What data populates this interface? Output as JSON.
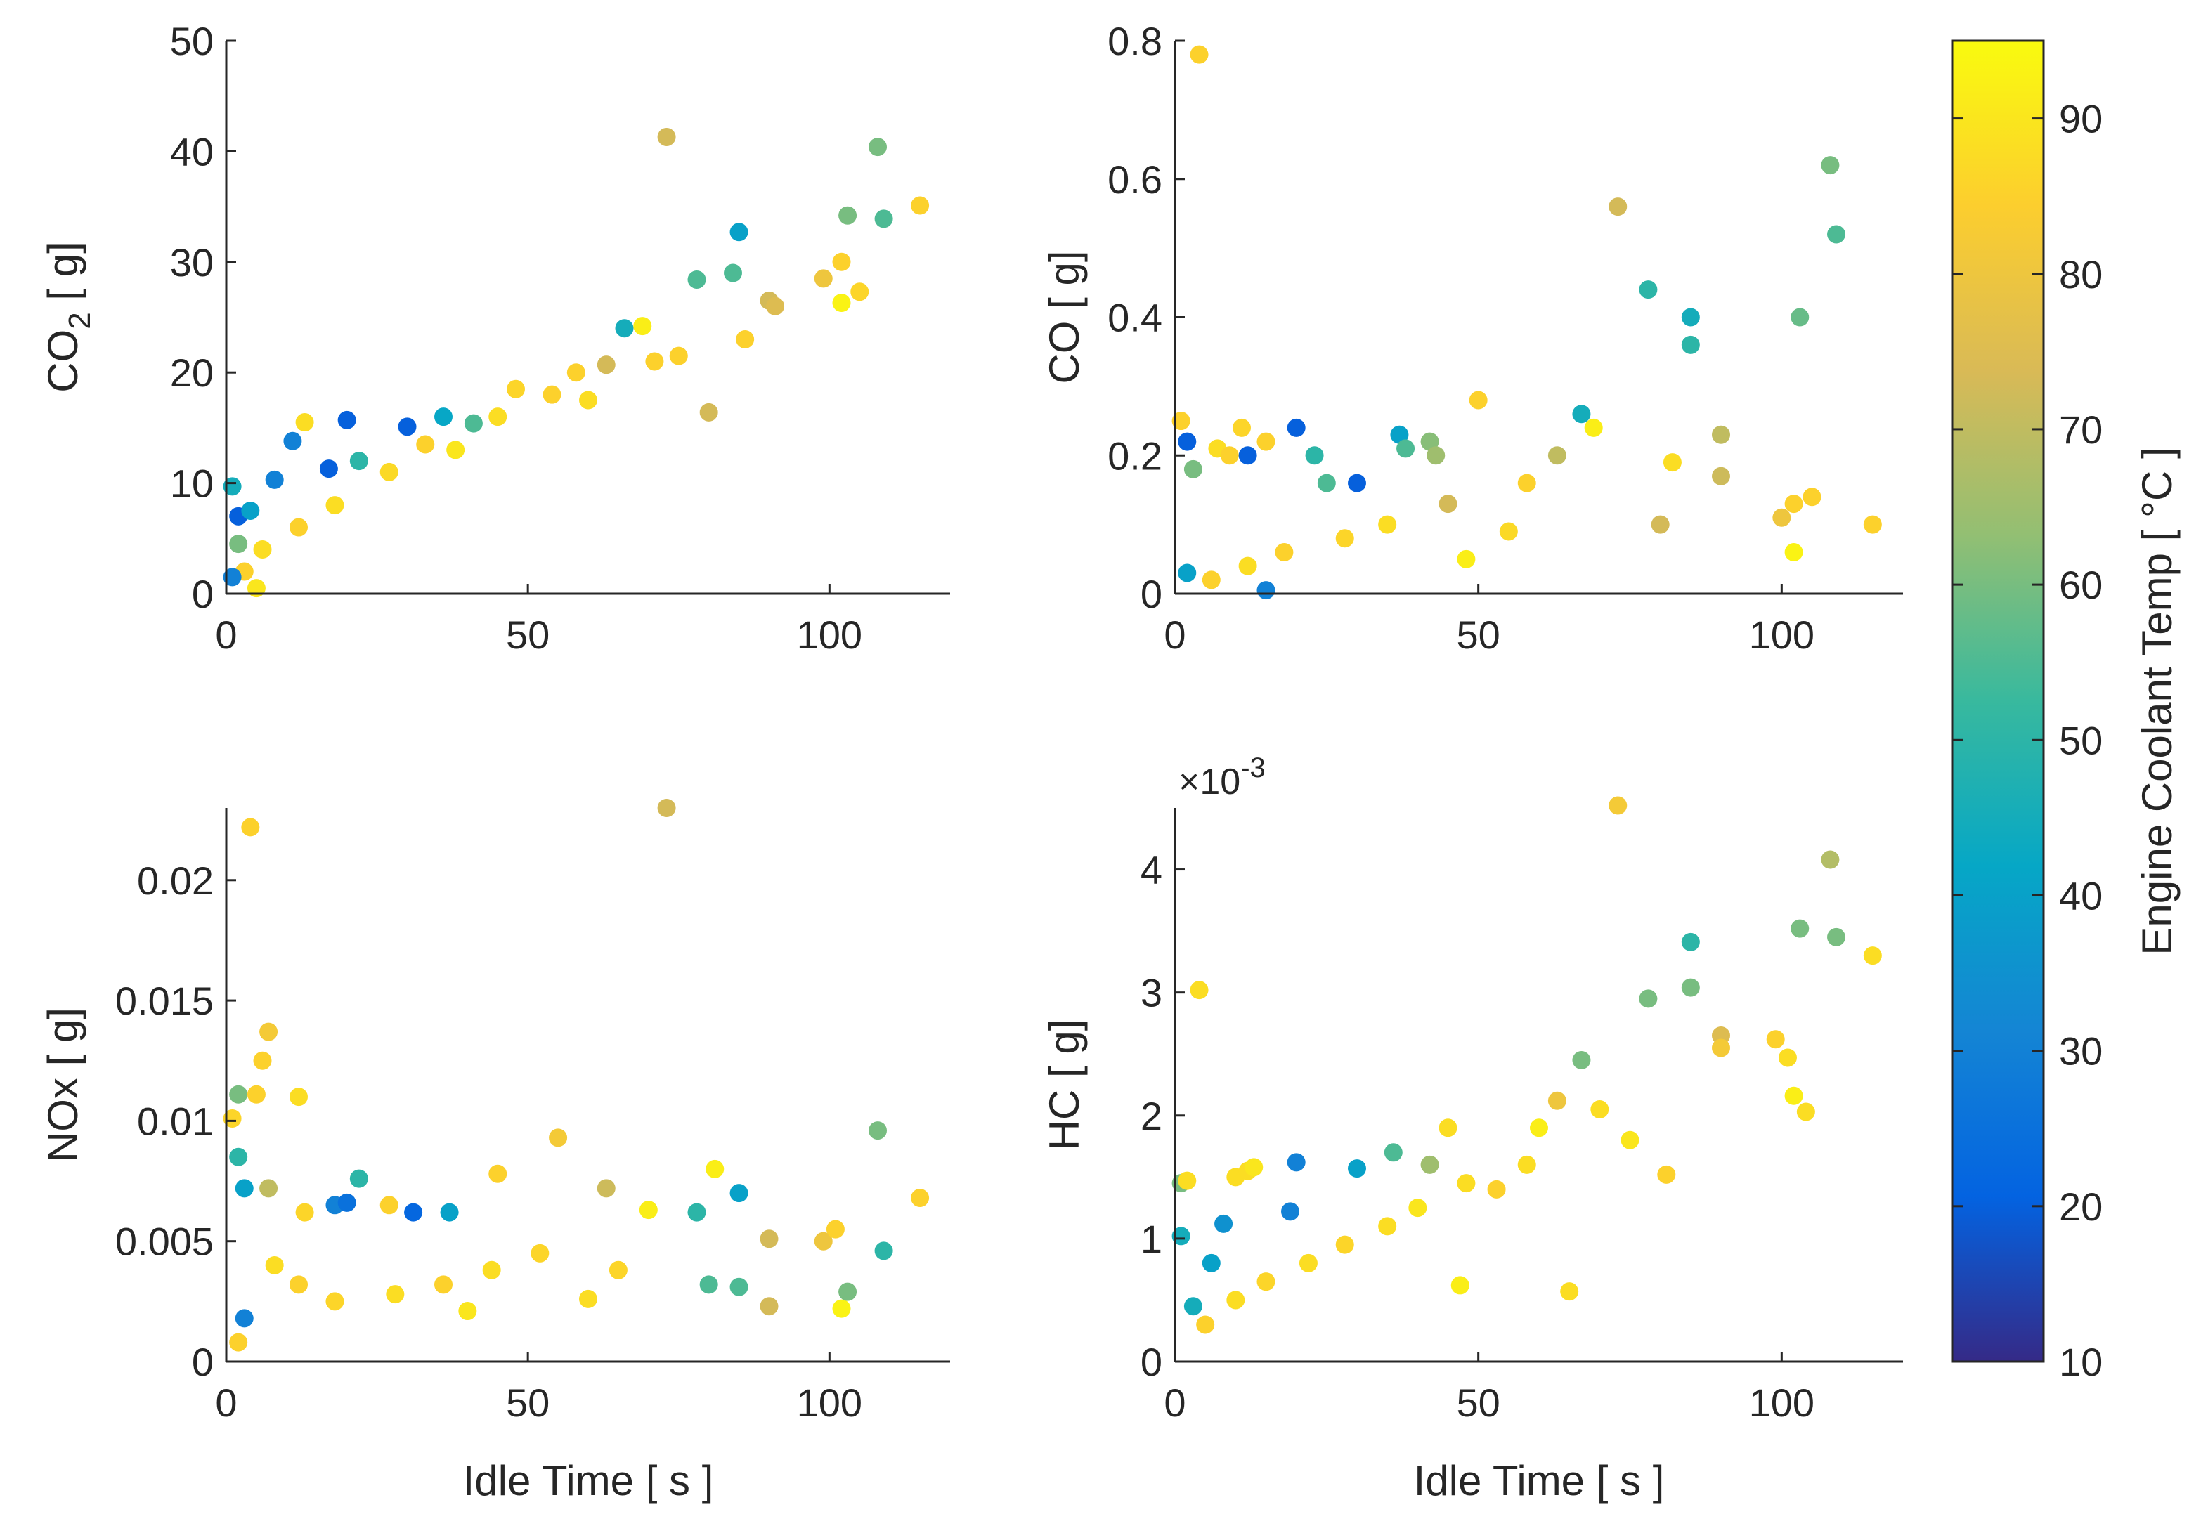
{
  "figure": {
    "background": "#ffffff"
  },
  "chart_data": [
    {
      "id": "co2",
      "type": "scatter",
      "title": "",
      "xlabel": "",
      "ylabel": "CO",
      "ylabel_sub": "2",
      "ylabel_unit": " [ g]",
      "xlim": [
        0,
        120
      ],
      "ylim": [
        0,
        50
      ],
      "xticks": [
        0,
        50,
        100
      ],
      "yticks": [
        0,
        10,
        20,
        30,
        40,
        50
      ],
      "exponent": "",
      "points": [
        {
          "x": 1,
          "y": 9.7,
          "t": 45
        },
        {
          "x": 2,
          "y": 7,
          "t": 20
        },
        {
          "x": 4,
          "y": 7.5,
          "t": 40
        },
        {
          "x": 8,
          "y": 10.3,
          "t": 30
        },
        {
          "x": 11,
          "y": 13.8,
          "t": 30
        },
        {
          "x": 13,
          "y": 15.5,
          "t": 88
        },
        {
          "x": 17,
          "y": 11.3,
          "t": 20
        },
        {
          "x": 20,
          "y": 15.7,
          "t": 20
        },
        {
          "x": 22,
          "y": 12,
          "t": 50
        },
        {
          "x": 30,
          "y": 15.1,
          "t": 20
        },
        {
          "x": 36,
          "y": 16,
          "t": 42
        },
        {
          "x": 41,
          "y": 15.4,
          "t": 55
        },
        {
          "x": 54,
          "y": 18,
          "t": 85
        },
        {
          "x": 58,
          "y": 20,
          "t": 85
        },
        {
          "x": 63,
          "y": 20.7,
          "t": 73
        },
        {
          "x": 66,
          "y": 24,
          "t": 45
        },
        {
          "x": 69,
          "y": 24.2,
          "t": 92
        },
        {
          "x": 73,
          "y": 41.3,
          "t": 73
        },
        {
          "x": 78,
          "y": 28.4,
          "t": 55
        },
        {
          "x": 80,
          "y": 16.4,
          "t": 73
        },
        {
          "x": 84,
          "y": 29,
          "t": 55
        },
        {
          "x": 85,
          "y": 32.7,
          "t": 40
        },
        {
          "x": 90,
          "y": 26.5,
          "t": 73
        },
        {
          "x": 91,
          "y": 26,
          "t": 75
        },
        {
          "x": 99,
          "y": 28.5,
          "t": 80
        },
        {
          "x": 102,
          "y": 30,
          "t": 85
        },
        {
          "x": 102,
          "y": 26.3,
          "t": 93
        },
        {
          "x": 103,
          "y": 34.2,
          "t": 60
        },
        {
          "x": 105,
          "y": 27.3,
          "t": 86
        },
        {
          "x": 108,
          "y": 40.4,
          "t": 60
        },
        {
          "x": 109,
          "y": 33.9,
          "t": 55
        },
        {
          "x": 115,
          "y": 35.1,
          "t": 85
        },
        {
          "x": 71,
          "y": 21,
          "t": 85
        },
        {
          "x": 75,
          "y": 21.5,
          "t": 85
        },
        {
          "x": 86,
          "y": 23,
          "t": 85
        },
        {
          "x": 60,
          "y": 17.5,
          "t": 88
        },
        {
          "x": 48,
          "y": 18.5,
          "t": 86
        },
        {
          "x": 45,
          "y": 16,
          "t": 88
        },
        {
          "x": 38,
          "y": 13,
          "t": 90
        },
        {
          "x": 27,
          "y": 11,
          "t": 87
        },
        {
          "x": 33,
          "y": 13.5,
          "t": 85
        },
        {
          "x": 18,
          "y": 8,
          "t": 88
        },
        {
          "x": 12,
          "y": 6,
          "t": 85
        },
        {
          "x": 6,
          "y": 4,
          "t": 88
        },
        {
          "x": 3,
          "y": 2,
          "t": 85
        },
        {
          "x": 5,
          "y": 0.5,
          "t": 90
        },
        {
          "x": 1,
          "y": 1.5,
          "t": 30
        },
        {
          "x": 2,
          "y": 4.5,
          "t": 60
        }
      ]
    },
    {
      "id": "co",
      "type": "scatter",
      "title": "",
      "xlabel": "",
      "ylabel": "CO",
      "ylabel_sub": "",
      "ylabel_unit": " [ g]",
      "xlim": [
        0,
        120
      ],
      "ylim": [
        0,
        0.8
      ],
      "xticks": [
        0,
        50,
        100
      ],
      "yticks": [
        0,
        0.2,
        0.4,
        0.6,
        0.8
      ],
      "exponent": "",
      "points": [
        {
          "x": 4,
          "y": 0.78,
          "t": 85
        },
        {
          "x": 1,
          "y": 0.25,
          "t": 85
        },
        {
          "x": 2,
          "y": 0.22,
          "t": 20
        },
        {
          "x": 3,
          "y": 0.18,
          "t": 60
        },
        {
          "x": 7,
          "y": 0.21,
          "t": 88
        },
        {
          "x": 9,
          "y": 0.2,
          "t": 85
        },
        {
          "x": 11,
          "y": 0.24,
          "t": 86
        },
        {
          "x": 12,
          "y": 0.2,
          "t": 20
        },
        {
          "x": 15,
          "y": 0.22,
          "t": 85
        },
        {
          "x": 20,
          "y": 0.24,
          "t": 20
        },
        {
          "x": 23,
          "y": 0.2,
          "t": 50
        },
        {
          "x": 25,
          "y": 0.16,
          "t": 55
        },
        {
          "x": 30,
          "y": 0.16,
          "t": 20
        },
        {
          "x": 37,
          "y": 0.23,
          "t": 40
        },
        {
          "x": 38,
          "y": 0.21,
          "t": 55
        },
        {
          "x": 42,
          "y": 0.22,
          "t": 62
        },
        {
          "x": 43,
          "y": 0.2,
          "t": 65
        },
        {
          "x": 50,
          "y": 0.28,
          "t": 85
        },
        {
          "x": 58,
          "y": 0.16,
          "t": 85
        },
        {
          "x": 63,
          "y": 0.2,
          "t": 70
        },
        {
          "x": 67,
          "y": 0.26,
          "t": 45
        },
        {
          "x": 69,
          "y": 0.24,
          "t": 92
        },
        {
          "x": 73,
          "y": 0.56,
          "t": 73
        },
        {
          "x": 78,
          "y": 0.44,
          "t": 50
        },
        {
          "x": 80,
          "y": 0.1,
          "t": 73
        },
        {
          "x": 82,
          "y": 0.19,
          "t": 88
        },
        {
          "x": 85,
          "y": 0.36,
          "t": 50
        },
        {
          "x": 85,
          "y": 0.4,
          "t": 45
        },
        {
          "x": 90,
          "y": 0.23,
          "t": 70
        },
        {
          "x": 90,
          "y": 0.17,
          "t": 72
        },
        {
          "x": 100,
          "y": 0.11,
          "t": 80
        },
        {
          "x": 102,
          "y": 0.06,
          "t": 93
        },
        {
          "x": 102,
          "y": 0.13,
          "t": 85
        },
        {
          "x": 103,
          "y": 0.4,
          "t": 58
        },
        {
          "x": 105,
          "y": 0.14,
          "t": 85
        },
        {
          "x": 108,
          "y": 0.62,
          "t": 60
        },
        {
          "x": 109,
          "y": 0.52,
          "t": 55
        },
        {
          "x": 115,
          "y": 0.1,
          "t": 85
        },
        {
          "x": 45,
          "y": 0.13,
          "t": 73
        },
        {
          "x": 35,
          "y": 0.1,
          "t": 88
        },
        {
          "x": 28,
          "y": 0.08,
          "t": 86
        },
        {
          "x": 18,
          "y": 0.06,
          "t": 85
        },
        {
          "x": 12,
          "y": 0.04,
          "t": 88
        },
        {
          "x": 6,
          "y": 0.02,
          "t": 85
        },
        {
          "x": 2,
          "y": 0.03,
          "t": 40
        },
        {
          "x": 15,
          "y": 0.005,
          "t": 30
        },
        {
          "x": 55,
          "y": 0.09,
          "t": 87
        },
        {
          "x": 48,
          "y": 0.05,
          "t": 92
        }
      ]
    },
    {
      "id": "nox",
      "type": "scatter",
      "title": "",
      "xlabel": "Idle Time [ s ]",
      "ylabel": "NOx",
      "ylabel_sub": "",
      "ylabel_unit": " [ g]",
      "xlim": [
        0,
        120
      ],
      "ylim": [
        0,
        0.023
      ],
      "xticks": [
        0,
        50,
        100
      ],
      "yticks": [
        0,
        0.005,
        0.01,
        0.015,
        0.02
      ],
      "yticklabels": [
        "0",
        "0.005",
        "0.01",
        "0.015",
        "0.02"
      ],
      "exponent": "",
      "points": [
        {
          "x": 4,
          "y": 0.0222,
          "t": 85
        },
        {
          "x": 73,
          "y": 0.023,
          "t": 73
        },
        {
          "x": 7,
          "y": 0.0137,
          "t": 82
        },
        {
          "x": 6,
          "y": 0.0125,
          "t": 85
        },
        {
          "x": 1,
          "y": 0.0101,
          "t": 86
        },
        {
          "x": 2,
          "y": 0.0111,
          "t": 60
        },
        {
          "x": 5,
          "y": 0.0111,
          "t": 85
        },
        {
          "x": 12,
          "y": 0.011,
          "t": 88
        },
        {
          "x": 2,
          "y": 0.0085,
          "t": 50
        },
        {
          "x": 3,
          "y": 0.0072,
          "t": 40
        },
        {
          "x": 7,
          "y": 0.0072,
          "t": 70
        },
        {
          "x": 13,
          "y": 0.0062,
          "t": 86
        },
        {
          "x": 18,
          "y": 0.0065,
          "t": 30
        },
        {
          "x": 20,
          "y": 0.0066,
          "t": 25
        },
        {
          "x": 22,
          "y": 0.0076,
          "t": 50
        },
        {
          "x": 27,
          "y": 0.0065,
          "t": 85
        },
        {
          "x": 31,
          "y": 0.0062,
          "t": 22
        },
        {
          "x": 37,
          "y": 0.0062,
          "t": 40
        },
        {
          "x": 45,
          "y": 0.0078,
          "t": 85
        },
        {
          "x": 55,
          "y": 0.0093,
          "t": 82
        },
        {
          "x": 63,
          "y": 0.0072,
          "t": 72
        },
        {
          "x": 70,
          "y": 0.0063,
          "t": 92
        },
        {
          "x": 78,
          "y": 0.0062,
          "t": 50
        },
        {
          "x": 81,
          "y": 0.008,
          "t": 92
        },
        {
          "x": 85,
          "y": 0.007,
          "t": 40
        },
        {
          "x": 85,
          "y": 0.0031,
          "t": 55
        },
        {
          "x": 90,
          "y": 0.0051,
          "t": 73
        },
        {
          "x": 90,
          "y": 0.0023,
          "t": 73
        },
        {
          "x": 99,
          "y": 0.005,
          "t": 80
        },
        {
          "x": 101,
          "y": 0.0055,
          "t": 85
        },
        {
          "x": 102,
          "y": 0.0022,
          "t": 93
        },
        {
          "x": 103,
          "y": 0.0029,
          "t": 60
        },
        {
          "x": 108,
          "y": 0.0096,
          "t": 60
        },
        {
          "x": 109,
          "y": 0.0046,
          "t": 50
        },
        {
          "x": 115,
          "y": 0.0068,
          "t": 85
        },
        {
          "x": 80,
          "y": 0.0032,
          "t": 55
        },
        {
          "x": 52,
          "y": 0.0045,
          "t": 86
        },
        {
          "x": 44,
          "y": 0.0038,
          "t": 88
        },
        {
          "x": 36,
          "y": 0.0032,
          "t": 85
        },
        {
          "x": 28,
          "y": 0.0028,
          "t": 88
        },
        {
          "x": 18,
          "y": 0.0025,
          "t": 86
        },
        {
          "x": 12,
          "y": 0.0032,
          "t": 85
        },
        {
          "x": 8,
          "y": 0.004,
          "t": 88
        },
        {
          "x": 3,
          "y": 0.0018,
          "t": 30
        },
        {
          "x": 2,
          "y": 0.0008,
          "t": 85
        },
        {
          "x": 60,
          "y": 0.0026,
          "t": 88
        },
        {
          "x": 65,
          "y": 0.0038,
          "t": 86
        },
        {
          "x": 40,
          "y": 0.0021,
          "t": 90
        }
      ]
    },
    {
      "id": "hc",
      "type": "scatter",
      "title": "",
      "xlabel": "Idle Time [ s ]",
      "ylabel": "HC",
      "ylabel_sub": "",
      "ylabel_unit": " [ g]",
      "xlim": [
        0,
        120
      ],
      "ylim": [
        0,
        4.5
      ],
      "xticks": [
        0,
        50,
        100
      ],
      "yticks": [
        0,
        1,
        2,
        3,
        4
      ],
      "exponent": "×10",
      "exponent_power": "-3",
      "points": [
        {
          "x": 4,
          "y": 3.02,
          "t": 88
        },
        {
          "x": 73,
          "y": 4.52,
          "t": 82
        },
        {
          "x": 108,
          "y": 4.08,
          "t": 68
        },
        {
          "x": 103,
          "y": 3.52,
          "t": 60
        },
        {
          "x": 109,
          "y": 3.45,
          "t": 60
        },
        {
          "x": 115,
          "y": 3.3,
          "t": 88
        },
        {
          "x": 85,
          "y": 3.41,
          "t": 50
        },
        {
          "x": 85,
          "y": 3.04,
          "t": 60
        },
        {
          "x": 78,
          "y": 2.95,
          "t": 60
        },
        {
          "x": 90,
          "y": 2.65,
          "t": 75
        },
        {
          "x": 90,
          "y": 2.55,
          "t": 82
        },
        {
          "x": 99,
          "y": 2.62,
          "t": 85
        },
        {
          "x": 101,
          "y": 2.47,
          "t": 88
        },
        {
          "x": 102,
          "y": 2.16,
          "t": 92
        },
        {
          "x": 104,
          "y": 2.03,
          "t": 88
        },
        {
          "x": 67,
          "y": 2.45,
          "t": 60
        },
        {
          "x": 63,
          "y": 2.12,
          "t": 80
        },
        {
          "x": 81,
          "y": 1.52,
          "t": 85
        },
        {
          "x": 70,
          "y": 2.05,
          "t": 88
        },
        {
          "x": 65,
          "y": 0.57,
          "t": 88
        },
        {
          "x": 47,
          "y": 0.62,
          "t": 92
        },
        {
          "x": 1,
          "y": 1.45,
          "t": 60
        },
        {
          "x": 2,
          "y": 1.47,
          "t": 88
        },
        {
          "x": 8,
          "y": 1.12,
          "t": 35
        },
        {
          "x": 10,
          "y": 1.5,
          "t": 88
        },
        {
          "x": 12,
          "y": 1.55,
          "t": 88
        },
        {
          "x": 13,
          "y": 1.58,
          "t": 90
        },
        {
          "x": 20,
          "y": 1.62,
          "t": 30
        },
        {
          "x": 19,
          "y": 1.22,
          "t": 30
        },
        {
          "x": 30,
          "y": 1.57,
          "t": 40
        },
        {
          "x": 36,
          "y": 1.7,
          "t": 55
        },
        {
          "x": 42,
          "y": 1.6,
          "t": 65
        },
        {
          "x": 48,
          "y": 1.45,
          "t": 88
        },
        {
          "x": 53,
          "y": 1.4,
          "t": 85
        },
        {
          "x": 40,
          "y": 1.25,
          "t": 90
        },
        {
          "x": 35,
          "y": 1.1,
          "t": 88
        },
        {
          "x": 28,
          "y": 0.95,
          "t": 86
        },
        {
          "x": 22,
          "y": 0.8,
          "t": 88
        },
        {
          "x": 15,
          "y": 0.65,
          "t": 86
        },
        {
          "x": 10,
          "y": 0.5,
          "t": 88
        },
        {
          "x": 5,
          "y": 0.3,
          "t": 85
        },
        {
          "x": 3,
          "y": 0.45,
          "t": 45
        },
        {
          "x": 1,
          "y": 1.02,
          "t": 45
        },
        {
          "x": 58,
          "y": 1.6,
          "t": 88
        },
        {
          "x": 75,
          "y": 1.8,
          "t": 90
        },
        {
          "x": 60,
          "y": 1.9,
          "t": 92
        },
        {
          "x": 45,
          "y": 1.9,
          "t": 88
        },
        {
          "x": 6,
          "y": 0.8,
          "t": 40
        }
      ]
    }
  ],
  "colorbar": {
    "label": "Engine Coolant Temp  [ °C ]",
    "min": 10,
    "max": 95,
    "ticks": [
      10,
      20,
      30,
      40,
      50,
      60,
      70,
      80,
      90
    ],
    "colormap": "parula"
  }
}
